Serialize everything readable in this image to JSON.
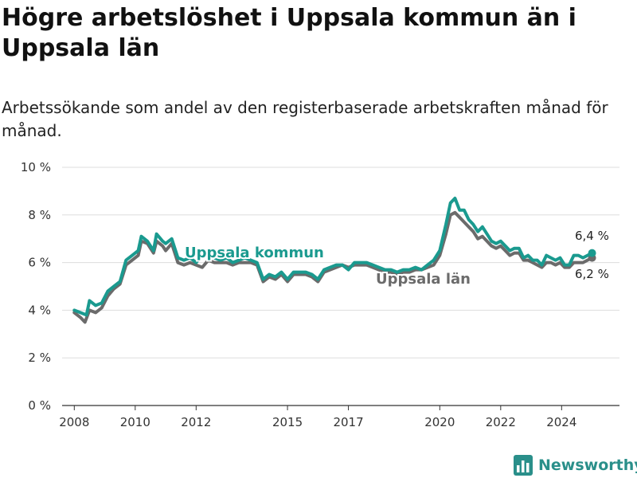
{
  "title": "Högre arbetslöshet i Uppsala kommun än i Uppsala län",
  "subtitle": "Arbetssökande som andel av den registerbaserade arbetskraften månad för månad.",
  "brand": {
    "name": "Newsworthy",
    "icon": "bar-chart-logo-icon"
  },
  "colors": {
    "kommun": "#1a9a8f",
    "lan": "#6b6b6b",
    "grid": "#dddddd"
  },
  "chart_data": {
    "type": "line",
    "ylim": [
      0,
      10
    ],
    "yticks": [
      0,
      2,
      4,
      6,
      8,
      10
    ],
    "ytick_labels": [
      "0 %",
      "2 %",
      "4 %",
      "6 %",
      "8 %",
      "10 %"
    ],
    "xlim": [
      2007.6,
      2025.9
    ],
    "xticks": [
      2008,
      2010,
      2012,
      2015,
      2017,
      2020,
      2022,
      2024
    ],
    "xtick_labels": [
      "2008",
      "2010",
      "2012",
      "2015",
      "2017",
      "2020",
      "2022",
      "2024"
    ],
    "series": [
      {
        "name": "Uppsala kommun",
        "key": "kommun",
        "end_label": "6,4 %",
        "points": [
          [
            2008.0,
            4.0
          ],
          [
            2008.2,
            3.9
          ],
          [
            2008.4,
            3.8
          ],
          [
            2008.5,
            4.4
          ],
          [
            2008.7,
            4.2
          ],
          [
            2008.9,
            4.3
          ],
          [
            2009.1,
            4.8
          ],
          [
            2009.3,
            5.0
          ],
          [
            2009.5,
            5.2
          ],
          [
            2009.7,
            6.1
          ],
          [
            2009.9,
            6.3
          ],
          [
            2010.1,
            6.5
          ],
          [
            2010.2,
            7.1
          ],
          [
            2010.4,
            6.9
          ],
          [
            2010.6,
            6.5
          ],
          [
            2010.7,
            7.2
          ],
          [
            2010.9,
            6.9
          ],
          [
            2011.0,
            6.8
          ],
          [
            2011.2,
            7.0
          ],
          [
            2011.4,
            6.2
          ],
          [
            2011.6,
            6.1
          ],
          [
            2011.8,
            6.2
          ],
          [
            2012.0,
            6.0
          ],
          [
            2012.2,
            6.3
          ],
          [
            2012.4,
            6.3
          ],
          [
            2012.6,
            6.2
          ],
          [
            2012.8,
            6.1
          ],
          [
            2013.0,
            6.2
          ],
          [
            2013.2,
            6.0
          ],
          [
            2013.4,
            6.1
          ],
          [
            2013.6,
            6.2
          ],
          [
            2013.8,
            6.1
          ],
          [
            2014.0,
            6.0
          ],
          [
            2014.2,
            5.3
          ],
          [
            2014.4,
            5.5
          ],
          [
            2014.6,
            5.4
          ],
          [
            2014.8,
            5.6
          ],
          [
            2015.0,
            5.3
          ],
          [
            2015.2,
            5.6
          ],
          [
            2015.4,
            5.6
          ],
          [
            2015.6,
            5.6
          ],
          [
            2015.8,
            5.5
          ],
          [
            2016.0,
            5.3
          ],
          [
            2016.2,
            5.7
          ],
          [
            2016.4,
            5.8
          ],
          [
            2016.6,
            5.9
          ],
          [
            2016.8,
            5.9
          ],
          [
            2017.0,
            5.7
          ],
          [
            2017.2,
            6.0
          ],
          [
            2017.4,
            6.0
          ],
          [
            2017.6,
            6.0
          ],
          [
            2017.8,
            5.9
          ],
          [
            2018.0,
            5.8
          ],
          [
            2018.2,
            5.7
          ],
          [
            2018.4,
            5.7
          ],
          [
            2018.6,
            5.6
          ],
          [
            2018.8,
            5.7
          ],
          [
            2019.0,
            5.7
          ],
          [
            2019.2,
            5.8
          ],
          [
            2019.4,
            5.7
          ],
          [
            2019.6,
            5.9
          ],
          [
            2019.8,
            6.1
          ],
          [
            2020.0,
            6.5
          ],
          [
            2020.2,
            7.6
          ],
          [
            2020.35,
            8.5
          ],
          [
            2020.5,
            8.7
          ],
          [
            2020.65,
            8.2
          ],
          [
            2020.8,
            8.2
          ],
          [
            2020.95,
            7.8
          ],
          [
            2021.1,
            7.6
          ],
          [
            2021.25,
            7.3
          ],
          [
            2021.4,
            7.5
          ],
          [
            2021.55,
            7.2
          ],
          [
            2021.7,
            6.9
          ],
          [
            2021.85,
            6.8
          ],
          [
            2022.0,
            6.9
          ],
          [
            2022.15,
            6.7
          ],
          [
            2022.3,
            6.5
          ],
          [
            2022.45,
            6.6
          ],
          [
            2022.6,
            6.6
          ],
          [
            2022.75,
            6.2
          ],
          [
            2022.9,
            6.3
          ],
          [
            2023.05,
            6.1
          ],
          [
            2023.2,
            6.1
          ],
          [
            2023.35,
            5.9
          ],
          [
            2023.5,
            6.3
          ],
          [
            2023.65,
            6.2
          ],
          [
            2023.8,
            6.1
          ],
          [
            2023.95,
            6.2
          ],
          [
            2024.1,
            5.9
          ],
          [
            2024.25,
            5.9
          ],
          [
            2024.4,
            6.3
          ],
          [
            2024.55,
            6.3
          ],
          [
            2024.7,
            6.2
          ],
          [
            2024.85,
            6.3
          ],
          [
            2025.0,
            6.4
          ]
        ]
      },
      {
        "name": "Uppsala län",
        "key": "lan",
        "end_label": "6,2 %",
        "points": [
          [
            2008.0,
            3.9
          ],
          [
            2008.2,
            3.7
          ],
          [
            2008.35,
            3.5
          ],
          [
            2008.5,
            4.0
          ],
          [
            2008.7,
            3.9
          ],
          [
            2008.9,
            4.1
          ],
          [
            2009.1,
            4.6
          ],
          [
            2009.3,
            4.9
          ],
          [
            2009.5,
            5.1
          ],
          [
            2009.7,
            5.9
          ],
          [
            2009.9,
            6.1
          ],
          [
            2010.1,
            6.3
          ],
          [
            2010.2,
            6.9
          ],
          [
            2010.4,
            6.8
          ],
          [
            2010.6,
            6.4
          ],
          [
            2010.7,
            6.9
          ],
          [
            2010.9,
            6.7
          ],
          [
            2011.0,
            6.5
          ],
          [
            2011.2,
            6.8
          ],
          [
            2011.4,
            6.0
          ],
          [
            2011.6,
            5.9
          ],
          [
            2011.8,
            6.0
          ],
          [
            2012.0,
            5.9
          ],
          [
            2012.2,
            5.8
          ],
          [
            2012.4,
            6.1
          ],
          [
            2012.6,
            6.0
          ],
          [
            2012.8,
            6.0
          ],
          [
            2013.0,
            6.0
          ],
          [
            2013.2,
            5.9
          ],
          [
            2013.4,
            6.0
          ],
          [
            2013.6,
            6.0
          ],
          [
            2013.8,
            6.0
          ],
          [
            2014.0,
            5.9
          ],
          [
            2014.2,
            5.2
          ],
          [
            2014.4,
            5.4
          ],
          [
            2014.6,
            5.3
          ],
          [
            2014.8,
            5.5
          ],
          [
            2015.0,
            5.2
          ],
          [
            2015.2,
            5.5
          ],
          [
            2015.4,
            5.5
          ],
          [
            2015.6,
            5.5
          ],
          [
            2015.8,
            5.4
          ],
          [
            2016.0,
            5.2
          ],
          [
            2016.2,
            5.6
          ],
          [
            2016.4,
            5.7
          ],
          [
            2016.6,
            5.8
          ],
          [
            2016.8,
            5.9
          ],
          [
            2017.0,
            5.8
          ],
          [
            2017.2,
            5.9
          ],
          [
            2017.4,
            5.9
          ],
          [
            2017.6,
            5.9
          ],
          [
            2017.8,
            5.8
          ],
          [
            2018.0,
            5.7
          ],
          [
            2018.2,
            5.6
          ],
          [
            2018.4,
            5.6
          ],
          [
            2018.6,
            5.5
          ],
          [
            2018.8,
            5.6
          ],
          [
            2019.0,
            5.6
          ],
          [
            2019.2,
            5.7
          ],
          [
            2019.4,
            5.7
          ],
          [
            2019.6,
            5.8
          ],
          [
            2019.8,
            5.9
          ],
          [
            2020.0,
            6.3
          ],
          [
            2020.2,
            7.2
          ],
          [
            2020.35,
            8.0
          ],
          [
            2020.5,
            8.1
          ],
          [
            2020.65,
            7.9
          ],
          [
            2020.8,
            7.7
          ],
          [
            2020.95,
            7.5
          ],
          [
            2021.1,
            7.3
          ],
          [
            2021.25,
            7.0
          ],
          [
            2021.4,
            7.1
          ],
          [
            2021.55,
            6.9
          ],
          [
            2021.7,
            6.7
          ],
          [
            2021.85,
            6.6
          ],
          [
            2022.0,
            6.7
          ],
          [
            2022.15,
            6.5
          ],
          [
            2022.3,
            6.3
          ],
          [
            2022.45,
            6.4
          ],
          [
            2022.6,
            6.4
          ],
          [
            2022.75,
            6.1
          ],
          [
            2022.9,
            6.1
          ],
          [
            2023.05,
            6.0
          ],
          [
            2023.2,
            5.9
          ],
          [
            2023.35,
            5.8
          ],
          [
            2023.5,
            6.0
          ],
          [
            2023.65,
            6.0
          ],
          [
            2023.8,
            5.9
          ],
          [
            2023.95,
            6.0
          ],
          [
            2024.1,
            5.8
          ],
          [
            2024.25,
            5.8
          ],
          [
            2024.4,
            6.0
          ],
          [
            2024.55,
            6.0
          ],
          [
            2024.7,
            6.0
          ],
          [
            2024.85,
            6.1
          ],
          [
            2025.0,
            6.2
          ]
        ]
      }
    ]
  }
}
